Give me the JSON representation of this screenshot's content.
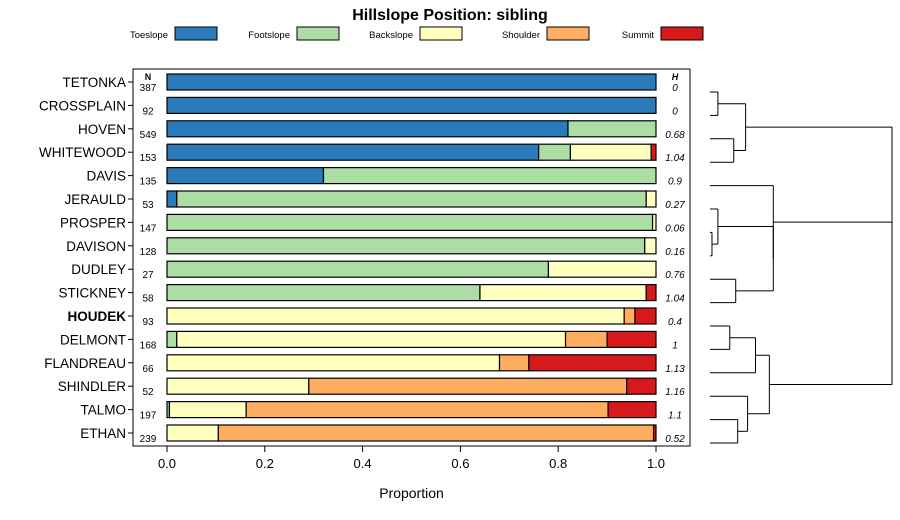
{
  "chart_data": {
    "type": "bar",
    "stacked": true,
    "orientation": "horizontal",
    "title": "Hillslope Position: sibling",
    "xlabel": "Proportion",
    "xlim": [
      0,
      1
    ],
    "xticks": [
      "0.0",
      "0.2",
      "0.4",
      "0.6",
      "0.8",
      "1.0"
    ],
    "n_header": "N",
    "h_header": "H",
    "legend_position": "top",
    "series": [
      {
        "name": "Toeslope",
        "color": "#2b7bba"
      },
      {
        "name": "Footslope",
        "color": "#abdda4"
      },
      {
        "name": "Backslope",
        "color": "#ffffbf"
      },
      {
        "name": "Shoulder",
        "color": "#fdae61"
      },
      {
        "name": "Summit",
        "color": "#d7191c"
      }
    ],
    "rows": [
      {
        "label": "TETONKA",
        "n": "387",
        "h": "0",
        "values": [
          1.0,
          0,
          0,
          0,
          0
        ]
      },
      {
        "label": "CROSSPLAIN",
        "n": "92",
        "h": "0",
        "values": [
          1.0,
          0,
          0,
          0,
          0
        ]
      },
      {
        "label": "HOVEN",
        "n": "549",
        "h": "0.68",
        "values": [
          0.82,
          0.18,
          0,
          0,
          0
        ]
      },
      {
        "label": "WHITEWOOD",
        "n": "153",
        "h": "1.04",
        "values": [
          0.76,
          0.065,
          0.165,
          0,
          0.01
        ]
      },
      {
        "label": "DAVIS",
        "n": "135",
        "h": "0.9",
        "values": [
          0.32,
          0.68,
          0,
          0,
          0
        ]
      },
      {
        "label": "JERAULD",
        "n": "53",
        "h": "0.27",
        "values": [
          0.02,
          0.96,
          0.02,
          0,
          0
        ]
      },
      {
        "label": "PROSPER",
        "n": "147",
        "h": "0.06",
        "values": [
          0,
          0.993,
          0.007,
          0,
          0
        ]
      },
      {
        "label": "DAVISON",
        "n": "128",
        "h": "0.16",
        "values": [
          0,
          0.977,
          0.023,
          0,
          0
        ]
      },
      {
        "label": "DUDLEY",
        "n": "27",
        "h": "0.76",
        "values": [
          0,
          0.78,
          0.22,
          0,
          0
        ]
      },
      {
        "label": "STICKNEY",
        "n": "58",
        "h": "1.04",
        "values": [
          0,
          0.64,
          0.34,
          0,
          0.02
        ]
      },
      {
        "label": "HOUDEK",
        "n": "93",
        "h": "0.4",
        "values": [
          0,
          0,
          0.935,
          0.022,
          0.043
        ],
        "highlight": true
      },
      {
        "label": "DELMONT",
        "n": "168",
        "h": "1",
        "values": [
          0,
          0.02,
          0.795,
          0.085,
          0.1
        ]
      },
      {
        "label": "FLANDREAU",
        "n": "66",
        "h": "1.13",
        "values": [
          0,
          0,
          0.68,
          0.06,
          0.26
        ]
      },
      {
        "label": "SHINDLER",
        "n": "52",
        "h": "1.16",
        "values": [
          0,
          0,
          0.29,
          0.65,
          0.06
        ]
      },
      {
        "label": "TALMO",
        "n": "197",
        "h": "1.1",
        "values": [
          0,
          0.005,
          0.157,
          0.74,
          0.098
        ]
      },
      {
        "label": "ETHAN",
        "n": "239",
        "h": "0.52",
        "values": [
          0,
          0,
          0.105,
          0.89,
          0.005
        ]
      }
    ],
    "dendrogram": {
      "leaves": [
        "TETONKA",
        "CROSSPLAIN",
        "HOVEN",
        "WHITEWOOD",
        "DAVIS",
        "JERAULD",
        "PROSPER",
        "DAVISON",
        "DUDLEY",
        "STICKNEY",
        "HOUDEK",
        "DELMONT",
        "FLANDREAU",
        "SHINDLER",
        "TALMO",
        "ETHAN"
      ],
      "merges": [
        [
          -1,
          -2,
          0.02
        ],
        [
          -3,
          -4,
          0.06
        ],
        [
          1,
          2,
          0.09
        ],
        [
          -7,
          -8,
          0.005
        ],
        [
          -6,
          4,
          0.02
        ],
        [
          -9,
          -10,
          0.065
        ],
        [
          5,
          6,
          0.16
        ],
        [
          -5,
          7,
          0.16
        ],
        [
          3,
          8,
          0.46
        ],
        [
          -11,
          -12,
          0.05
        ],
        [
          -13,
          10,
          0.115
        ],
        [
          -15,
          -16,
          0.07
        ],
        [
          -14,
          12,
          0.095
        ],
        [
          11,
          13,
          0.15
        ],
        [
          9,
          14,
          0.46
        ]
      ]
    }
  }
}
